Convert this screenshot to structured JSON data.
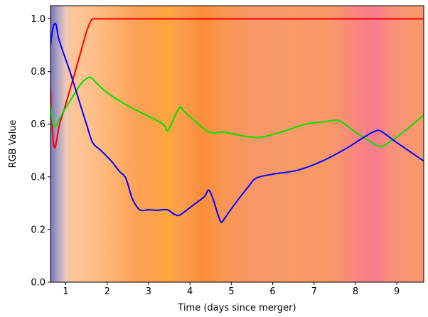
{
  "chart_data": {
    "type": "line",
    "xlabel": "Time (days since merger)",
    "ylabel": "RGB Value",
    "xlim": [
      0.63,
      9.65
    ],
    "ylim": [
      0.0,
      1.05
    ],
    "x_ticks": [
      1,
      2,
      3,
      4,
      5,
      6,
      7,
      8,
      9
    ],
    "y_ticks": [
      0.0,
      0.2,
      0.4,
      0.6,
      0.8,
      1.0
    ],
    "x_tick_labels": [
      "1",
      "2",
      "3",
      "4",
      "5",
      "6",
      "7",
      "8",
      "9"
    ],
    "y_tick_labels": [
      "0.0",
      "0.2",
      "0.4",
      "0.6",
      "0.8",
      "1.0"
    ],
    "grid": false,
    "background": "vertical color bands showing the RGB color at each time",
    "series": [
      {
        "color": "#ff0000",
        "points": [
          [
            0.63,
            0.74
          ],
          [
            0.66,
            0.62
          ],
          [
            0.7,
            0.53
          ],
          [
            0.74,
            0.51
          ],
          [
            0.78,
            0.54
          ],
          [
            0.85,
            0.6
          ],
          [
            0.95,
            0.65
          ],
          [
            1.1,
            0.73
          ],
          [
            1.3,
            0.84
          ],
          [
            1.5,
            0.95
          ],
          [
            1.6,
            0.99
          ],
          [
            1.68,
            1.0
          ],
          [
            2.0,
            1.0
          ],
          [
            4.0,
            1.0
          ],
          [
            6.0,
            1.0
          ],
          [
            8.0,
            1.0
          ],
          [
            9.65,
            1.0
          ]
        ]
      },
      {
        "color": "#00e000",
        "points": [
          [
            0.63,
            0.68
          ],
          [
            0.68,
            0.61
          ],
          [
            0.74,
            0.59
          ],
          [
            0.82,
            0.61
          ],
          [
            0.95,
            0.65
          ],
          [
            1.15,
            0.7
          ],
          [
            1.35,
            0.75
          ],
          [
            1.52,
            0.775
          ],
          [
            1.62,
            0.775
          ],
          [
            1.75,
            0.755
          ],
          [
            2.0,
            0.72
          ],
          [
            2.5,
            0.67
          ],
          [
            3.0,
            0.63
          ],
          [
            3.35,
            0.6
          ],
          [
            3.45,
            0.575
          ],
          [
            3.55,
            0.6
          ],
          [
            3.68,
            0.645
          ],
          [
            3.78,
            0.665
          ],
          [
            3.85,
            0.65
          ],
          [
            4.1,
            0.615
          ],
          [
            4.4,
            0.575
          ],
          [
            4.6,
            0.567
          ],
          [
            4.8,
            0.57
          ],
          [
            5.3,
            0.555
          ],
          [
            5.7,
            0.55
          ],
          [
            6.2,
            0.57
          ],
          [
            6.8,
            0.6
          ],
          [
            7.3,
            0.61
          ],
          [
            7.55,
            0.615
          ],
          [
            7.7,
            0.605
          ],
          [
            8.0,
            0.57
          ],
          [
            8.4,
            0.53
          ],
          [
            8.6,
            0.515
          ],
          [
            8.8,
            0.53
          ],
          [
            9.2,
            0.575
          ],
          [
            9.65,
            0.635
          ]
        ]
      },
      {
        "color": "#0000ff",
        "points": [
          [
            0.63,
            0.9
          ],
          [
            0.67,
            0.95
          ],
          [
            0.72,
            0.98
          ],
          [
            0.77,
            0.975
          ],
          [
            0.82,
            0.93
          ],
          [
            0.9,
            0.89
          ],
          [
            1.1,
            0.8
          ],
          [
            1.3,
            0.7
          ],
          [
            1.5,
            0.6
          ],
          [
            1.65,
            0.53
          ],
          [
            1.85,
            0.5
          ],
          [
            2.1,
            0.46
          ],
          [
            2.3,
            0.42
          ],
          [
            2.45,
            0.395
          ],
          [
            2.6,
            0.32
          ],
          [
            2.75,
            0.28
          ],
          [
            2.85,
            0.272
          ],
          [
            3.0,
            0.275
          ],
          [
            3.2,
            0.273
          ],
          [
            3.45,
            0.275
          ],
          [
            3.6,
            0.26
          ],
          [
            3.72,
            0.253
          ],
          [
            3.85,
            0.265
          ],
          [
            4.1,
            0.295
          ],
          [
            4.35,
            0.325
          ],
          [
            4.45,
            0.35
          ],
          [
            4.55,
            0.32
          ],
          [
            4.68,
            0.255
          ],
          [
            4.76,
            0.228
          ],
          [
            4.85,
            0.245
          ],
          [
            5.1,
            0.3
          ],
          [
            5.4,
            0.36
          ],
          [
            5.6,
            0.395
          ],
          [
            6.0,
            0.41
          ],
          [
            6.6,
            0.425
          ],
          [
            7.2,
            0.46
          ],
          [
            7.8,
            0.51
          ],
          [
            8.2,
            0.55
          ],
          [
            8.5,
            0.575
          ],
          [
            8.65,
            0.57
          ],
          [
            9.0,
            0.53
          ],
          [
            9.65,
            0.46
          ]
        ]
      }
    ],
    "background_bands": [
      {
        "x": 0.63,
        "color": "#7a73b8"
      },
      {
        "x": 0.8,
        "color": "#a9a2c4"
      },
      {
        "x": 1.0,
        "color": "#f1c7b2"
      },
      {
        "x": 1.2,
        "color": "#fcc594"
      },
      {
        "x": 1.6,
        "color": "#ffc08c"
      },
      {
        "x": 2.2,
        "color": "#fdb26d"
      },
      {
        "x": 2.6,
        "color": "#fea35a"
      },
      {
        "x": 3.1,
        "color": "#fca14b"
      },
      {
        "x": 3.4,
        "color": "#fda73c"
      },
      {
        "x": 3.8,
        "color": "#fb9d4d"
      },
      {
        "x": 4.3,
        "color": "#fb8d37"
      },
      {
        "x": 4.8,
        "color": "#fa9651"
      },
      {
        "x": 5.6,
        "color": "#f7976a"
      },
      {
        "x": 6.5,
        "color": "#f99a67"
      },
      {
        "x": 7.4,
        "color": "#f99767"
      },
      {
        "x": 8.0,
        "color": "#f8877d"
      },
      {
        "x": 8.45,
        "color": "#f77d8e"
      },
      {
        "x": 8.9,
        "color": "#f99078"
      },
      {
        "x": 9.65,
        "color": "#f99a6c"
      }
    ]
  }
}
